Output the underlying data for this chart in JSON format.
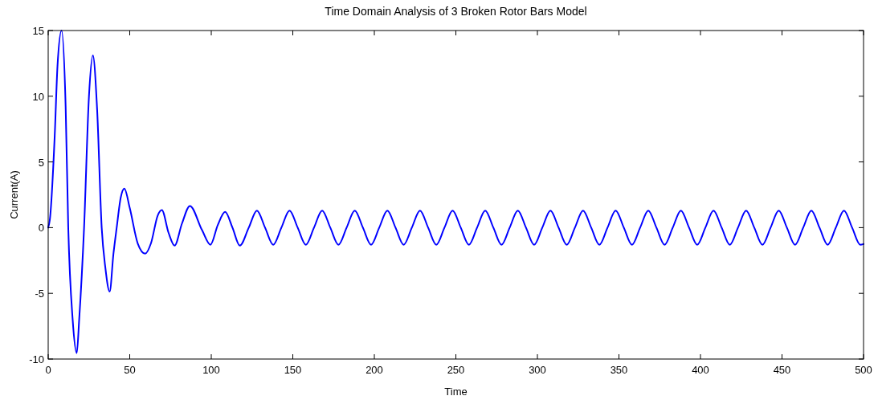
{
  "chart_data": {
    "type": "line",
    "title": "Time Domain Analysis of 3 Broken Rotor Bars Model",
    "xlabel": "Time",
    "ylabel": "Current(A)",
    "xlim": [
      0,
      500
    ],
    "xticks": [
      0,
      50,
      100,
      150,
      200,
      250,
      300,
      350,
      400,
      450,
      500
    ],
    "ylim": [
      -10,
      15
    ],
    "yticks": [
      -10,
      -5,
      0,
      5,
      10,
      15
    ],
    "grid": false,
    "marker": "none",
    "line_style": "solid",
    "series": [
      {
        "color": "#0000ff",
        "x": [
          0,
          1,
          4,
          5.7,
          8.2,
          10.7,
          12.3,
          15,
          17.5,
          19,
          22,
          25,
          27.4,
          30,
          32.8,
          35,
          37.7,
          40,
          42,
          44.5,
          46.7,
          50,
          54.9,
          59.5,
          63,
          67.2,
          69.7,
          73.8,
          77.5,
          82,
          86.9,
          94.3,
          99.5,
          104,
          108.5,
          113,
          117.5,
          123,
          128,
          133,
          138,
          143,
          148,
          153,
          158,
          163,
          168,
          173,
          178,
          183,
          188,
          193,
          198,
          203,
          208,
          213,
          218,
          223,
          228,
          233,
          238,
          243,
          248,
          253,
          258,
          263,
          268,
          273,
          278,
          283,
          288,
          293,
          298,
          303,
          308,
          313,
          318,
          323,
          328,
          333,
          338,
          343,
          348,
          353,
          358,
          363,
          368,
          373,
          378,
          383,
          388,
          393,
          398,
          403,
          408,
          413,
          418,
          423,
          428,
          433,
          438,
          443,
          448,
          453,
          458,
          463,
          468,
          473,
          478,
          483,
          488,
          493,
          498,
          500
        ],
        "values": [
          0,
          0.6,
          7,
          12.3,
          15,
          9.2,
          0,
          -7,
          -9.55,
          -7,
          0,
          10,
          13.1,
          9,
          0,
          -3,
          -4.87,
          -2,
          0,
          2.3,
          2.97,
          1.5,
          -1.2,
          -1.98,
          -1.2,
          0.94,
          1.34,
          -0.39,
          -1.37,
          0.3,
          1.65,
          -0.18,
          -1.3,
          0.2,
          1.2,
          0,
          -1.37,
          0,
          1.3,
          0,
          -1.3,
          0,
          1.3,
          0,
          -1.3,
          0,
          1.3,
          0,
          -1.3,
          0,
          1.3,
          0,
          -1.3,
          0,
          1.3,
          0,
          -1.3,
          0,
          1.3,
          0,
          -1.3,
          0,
          1.3,
          0,
          -1.3,
          0,
          1.3,
          0,
          -1.3,
          0,
          1.3,
          0,
          -1.3,
          0,
          1.3,
          0,
          -1.3,
          0,
          1.3,
          0,
          -1.3,
          0,
          1.3,
          0,
          -1.3,
          0,
          1.3,
          0,
          -1.3,
          0,
          1.3,
          0,
          -1.3,
          0,
          1.3,
          0,
          -1.3,
          0,
          1.3,
          0,
          -1.3,
          0,
          1.3,
          0,
          -1.3,
          0,
          1.3,
          0,
          -1.3,
          0,
          1.3,
          0,
          -1.3,
          -1.25
        ]
      }
    ]
  }
}
